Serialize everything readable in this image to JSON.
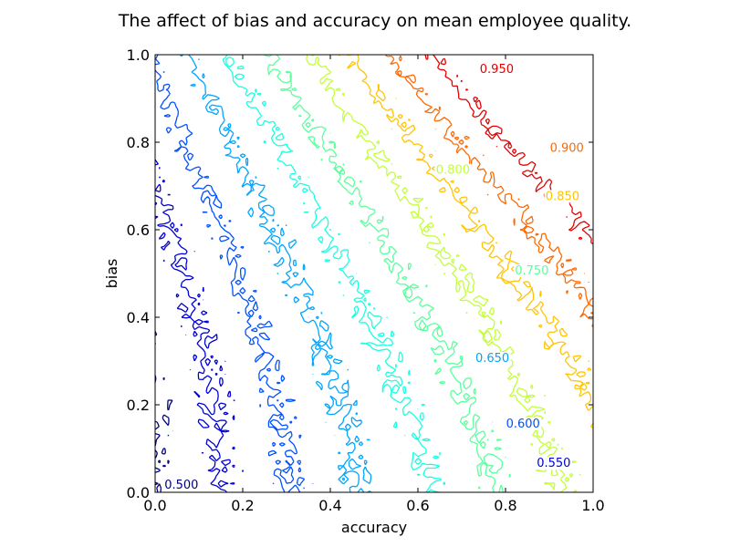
{
  "chart_data": {
    "type": "contour",
    "title": "The affect of bias and accuracy on mean employee quality.",
    "xlabel": "accuracy",
    "ylabel": "bias",
    "xlim": [
      0.0,
      1.0
    ],
    "ylim": [
      0.0,
      1.0
    ],
    "x_ticks": [
      "0.0",
      "0.2",
      "0.4",
      "0.6",
      "0.8",
      "1.0"
    ],
    "y_ticks": [
      "0.0",
      "0.2",
      "0.4",
      "0.6",
      "0.8",
      "1.0"
    ],
    "grid": false,
    "colormap": "jet",
    "levels": [
      {
        "level": 0.5,
        "label": "0.500",
        "color": "#00007f"
      },
      {
        "level": 0.55,
        "label": "0.550",
        "color": "#0000d4"
      },
      {
        "level": 0.6,
        "label": "0.600",
        "color": "#0050ff"
      },
      {
        "level": 0.65,
        "label": "0.650",
        "color": "#00a4ff"
      },
      {
        "level": 0.7,
        "label": "",
        "color": "#16ffe1"
      },
      {
        "level": 0.75,
        "label": "0.750",
        "color": "#5aff9c"
      },
      {
        "level": 0.8,
        "label": "0.800",
        "color": "#c1ff36"
      },
      {
        "level": 0.85,
        "label": "0.850",
        "color": "#ffc400"
      },
      {
        "level": 0.9,
        "label": "0.900",
        "color": "#ff6800"
      },
      {
        "level": 0.95,
        "label": "0.950",
        "color": "#e40000"
      }
    ],
    "contour_label_positions": [
      {
        "label": "0.950",
        "x": 0.78,
        "y": 0.96
      },
      {
        "label": "0.900",
        "x": 0.94,
        "y": 0.78
      },
      {
        "label": "0.850",
        "x": 0.93,
        "y": 0.67
      },
      {
        "label": "0.800",
        "x": 0.68,
        "y": 0.73
      },
      {
        "label": "0.750",
        "x": 0.86,
        "y": 0.5
      },
      {
        "label": "0.650",
        "x": 0.77,
        "y": 0.3
      },
      {
        "label": "0.600",
        "x": 0.84,
        "y": 0.15
      },
      {
        "label": "0.550",
        "x": 0.91,
        "y": 0.06
      },
      {
        "label": "0.500",
        "x": 0.06,
        "y": 0.01
      }
    ]
  }
}
